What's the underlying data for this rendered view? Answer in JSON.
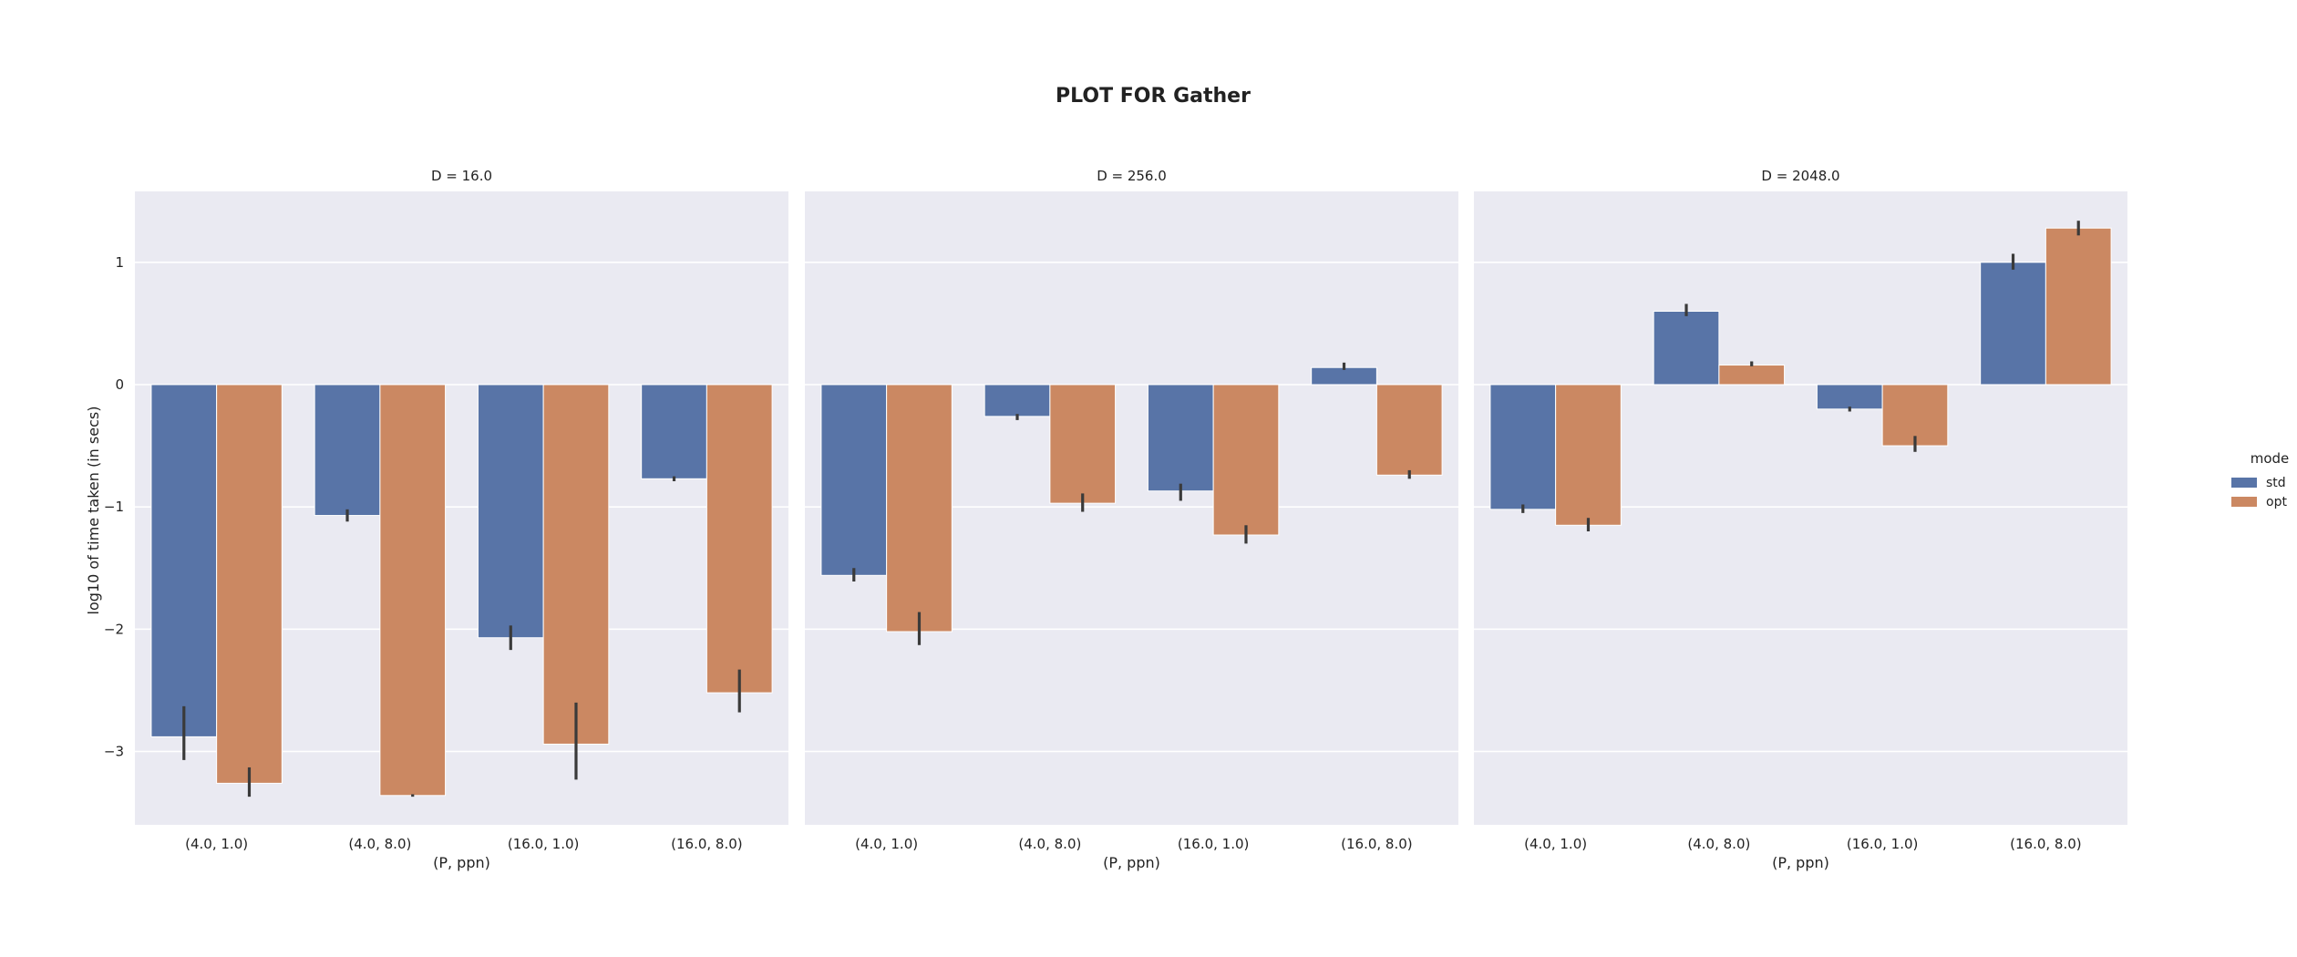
{
  "chart_data": {
    "type": "bar",
    "title": "PLOT FOR Gather",
    "ylabel": "log10 of time taken (in secs)",
    "xlabel": "(P, ppn)",
    "ylim": [
      -3.6,
      1.58
    ],
    "yticks": [
      1,
      0,
      -1,
      -2,
      -3
    ],
    "ytick_labels": [
      "1",
      "0",
      "−1",
      "−2",
      "−3"
    ],
    "grid": true,
    "legend": {
      "title": "mode",
      "position": "right",
      "entries": [
        {
          "name": "std",
          "color": "#5874a7"
        },
        {
          "name": "opt",
          "color": "#cb8862"
        }
      ]
    },
    "categories": [
      "(4.0, 1.0)",
      "(4.0, 8.0)",
      "(16.0, 1.0)",
      "(16.0, 8.0)"
    ],
    "panels": [
      {
        "title": "D = 16.0",
        "series": [
          {
            "name": "std",
            "values": [
              -2.88,
              -1.07,
              -2.07,
              -0.77
            ],
            "err_low": [
              -3.07,
              -1.12,
              -2.17,
              -0.79
            ],
            "err_high": [
              -2.63,
              -1.02,
              -1.97,
              -0.75
            ]
          },
          {
            "name": "opt",
            "values": [
              -3.26,
              -3.36,
              -2.94,
              -2.52
            ],
            "err_low": [
              -3.37,
              -3.37,
              -3.23,
              -2.68
            ],
            "err_high": [
              -3.13,
              -3.35,
              -2.6,
              -2.33
            ]
          }
        ]
      },
      {
        "title": "D = 256.0",
        "series": [
          {
            "name": "std",
            "values": [
              -1.56,
              -0.26,
              -0.87,
              0.14
            ],
            "err_low": [
              -1.61,
              -0.29,
              -0.95,
              0.12
            ],
            "err_high": [
              -1.5,
              -0.24,
              -0.81,
              0.18
            ]
          },
          {
            "name": "opt",
            "values": [
              -2.02,
              -0.97,
              -1.23,
              -0.74
            ],
            "err_low": [
              -2.13,
              -1.04,
              -1.3,
              -0.77
            ],
            "err_high": [
              -1.86,
              -0.89,
              -1.15,
              -0.7
            ]
          }
        ]
      },
      {
        "title": "D = 2048.0",
        "series": [
          {
            "name": "std",
            "values": [
              -1.02,
              0.6,
              -0.2,
              1.0
            ],
            "err_low": [
              -1.05,
              0.56,
              -0.22,
              0.94
            ],
            "err_high": [
              -0.98,
              0.66,
              -0.18,
              1.07
            ]
          },
          {
            "name": "opt",
            "values": [
              -1.15,
              0.16,
              -0.5,
              1.28
            ],
            "err_low": [
              -1.2,
              0.15,
              -0.55,
              1.22
            ],
            "err_high": [
              -1.09,
              0.19,
              -0.42,
              1.34
            ]
          }
        ]
      }
    ]
  }
}
